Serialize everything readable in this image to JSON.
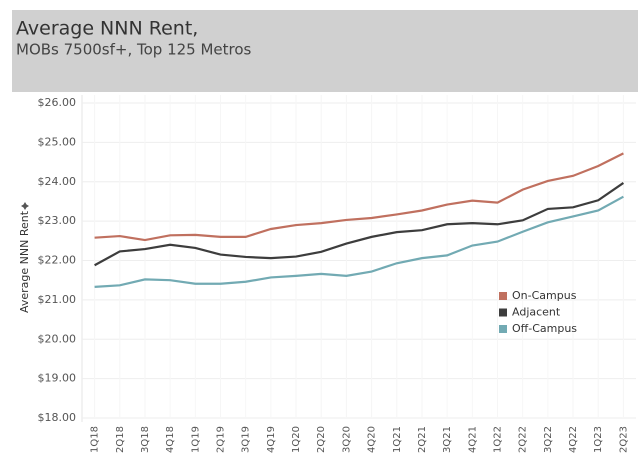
{
  "chart_data": {
    "type": "line",
    "title": "Average NNN Rent,",
    "subtitle": "MOBs 7500sf+, Top 125 Metros",
    "y_label": "Average NNN Rent",
    "categories": [
      "1Q18",
      "2Q18",
      "3Q18",
      "4Q18",
      "1Q19",
      "2Q19",
      "3Q19",
      "4Q19",
      "1Q20",
      "2Q20",
      "3Q20",
      "4Q20",
      "1Q21",
      "2Q21",
      "3Q21",
      "4Q21",
      "1Q22",
      "2Q22",
      "3Q22",
      "4Q22",
      "1Q23",
      "2Q23"
    ],
    "series": [
      {
        "name": "On-Campus",
        "color": "#c0705f",
        "values": [
          22.58,
          22.62,
          22.52,
          22.64,
          22.65,
          22.6,
          22.6,
          22.8,
          22.9,
          22.95,
          23.03,
          23.08,
          23.17,
          23.27,
          23.42,
          23.52,
          23.47,
          23.8,
          24.02,
          24.15,
          24.4,
          24.72
        ]
      },
      {
        "name": "Adjacent",
        "color": "#3d3d3d",
        "values": [
          21.88,
          22.23,
          22.29,
          22.4,
          22.32,
          22.15,
          22.09,
          22.06,
          22.1,
          22.22,
          22.43,
          22.6,
          22.72,
          22.77,
          22.92,
          22.95,
          22.92,
          23.02,
          23.31,
          23.35,
          23.53,
          23.97
        ]
      },
      {
        "name": "Off-Campus",
        "color": "#72aab3",
        "values": [
          21.33,
          21.37,
          21.52,
          21.5,
          21.41,
          21.41,
          21.46,
          21.57,
          21.61,
          21.66,
          21.61,
          21.72,
          21.93,
          22.06,
          22.13,
          22.38,
          22.48,
          22.73,
          22.97,
          23.12,
          23.27,
          23.62
        ]
      }
    ],
    "ylim": [
      18,
      26
    ],
    "yticks": [
      {
        "value": 18,
        "label": "$18.00"
      },
      {
        "value": 19,
        "label": "$19.00"
      },
      {
        "value": 20,
        "label": "$20.00"
      },
      {
        "value": 21,
        "label": "$21.00"
      },
      {
        "value": 22,
        "label": "$22.00"
      },
      {
        "value": 23,
        "label": "$23.00"
      },
      {
        "value": 24,
        "label": "$24.00"
      },
      {
        "value": 25,
        "label": "$25.00"
      },
      {
        "value": 26,
        "label": "$26.00"
      }
    ],
    "grid": true
  }
}
